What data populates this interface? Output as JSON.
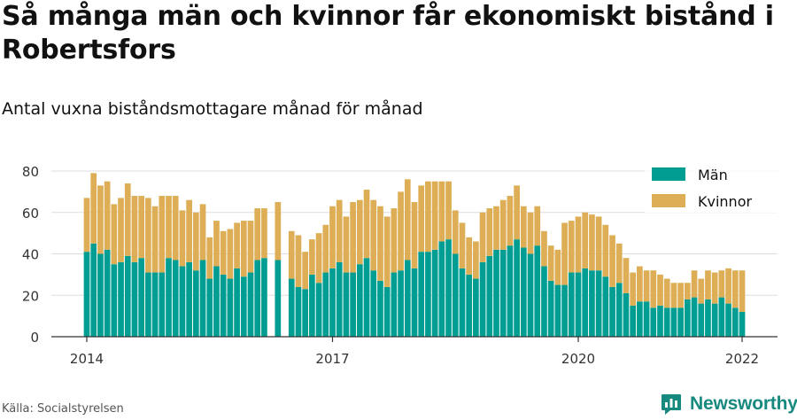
{
  "title": "Så många män och kvinnor får ekonomiskt bistånd i Robertsfors",
  "subtitle": "Antal vuxna biståndsmottagare månad för månad",
  "source": "Källa: Socialstyrelsen",
  "brand": {
    "name": "Newsworthy",
    "icon": "newsworthy-logo-icon"
  },
  "colors": {
    "men": "#009e92",
    "women": "#ddae55",
    "grid": "#dddddd",
    "axis": "#333333"
  },
  "chart_data": {
    "type": "bar",
    "stacked": true,
    "title": "Så många män och kvinnor får ekonomiskt bistånd i Robertsfors",
    "subtitle": "Antal vuxna biståndsmottagare månad för månad",
    "xlabel": "",
    "ylabel": "",
    "x_start": "2014-01",
    "x_end": "2022-01",
    "x_ticks": [
      "2014",
      "2017",
      "2020",
      "2022"
    ],
    "ylim": [
      0,
      80
    ],
    "y_ticks": [
      0,
      20,
      40,
      60,
      80
    ],
    "grid": true,
    "legend_position": "top-right",
    "categories": [
      "2014-01",
      "2014-02",
      "2014-03",
      "2014-04",
      "2014-05",
      "2014-06",
      "2014-07",
      "2014-08",
      "2014-09",
      "2014-10",
      "2014-11",
      "2014-12",
      "2015-01",
      "2015-02",
      "2015-03",
      "2015-04",
      "2015-05",
      "2015-06",
      "2015-07",
      "2015-08",
      "2015-09",
      "2015-10",
      "2015-11",
      "2015-12",
      "2016-01",
      "2016-02",
      "2016-03",
      "2016-04",
      "2016-05",
      "2016-06",
      "2016-07",
      "2016-08",
      "2016-09",
      "2016-10",
      "2016-11",
      "2016-12",
      "2017-01",
      "2017-02",
      "2017-03",
      "2017-04",
      "2017-05",
      "2017-06",
      "2017-07",
      "2017-08",
      "2017-09",
      "2017-10",
      "2017-11",
      "2017-12",
      "2018-01",
      "2018-02",
      "2018-03",
      "2018-04",
      "2018-05",
      "2018-06",
      "2018-07",
      "2018-08",
      "2018-09",
      "2018-10",
      "2018-11",
      "2018-12",
      "2019-01",
      "2019-02",
      "2019-03",
      "2019-04",
      "2019-05",
      "2019-06",
      "2019-07",
      "2019-08",
      "2019-09",
      "2019-10",
      "2019-11",
      "2019-12",
      "2020-01",
      "2020-02",
      "2020-03",
      "2020-04",
      "2020-05",
      "2020-06",
      "2020-07",
      "2020-08",
      "2020-09",
      "2020-10",
      "2020-11",
      "2020-12",
      "2021-01",
      "2021-02",
      "2021-03",
      "2021-04",
      "2021-05",
      "2021-06",
      "2021-07",
      "2021-08",
      "2021-09",
      "2021-10",
      "2021-11",
      "2021-12",
      "2022-01"
    ],
    "series": [
      {
        "name": "Män",
        "values": [
          41,
          45,
          40,
          42,
          35,
          36,
          39,
          36,
          38,
          31,
          31,
          31,
          38,
          37,
          34,
          36,
          32,
          37,
          28,
          34,
          30,
          28,
          33,
          29,
          31,
          37,
          38,
          null,
          37,
          null,
          28,
          24,
          23,
          30,
          26,
          31,
          33,
          36,
          31,
          31,
          35,
          38,
          32,
          27,
          24,
          31,
          32,
          37,
          33,
          41,
          41,
          42,
          46,
          47,
          40,
          33,
          30,
          28,
          36,
          39,
          42,
          42,
          44,
          47,
          43,
          40,
          44,
          34,
          27,
          25,
          25,
          31,
          31,
          33,
          32,
          32,
          29,
          24,
          26,
          21,
          15,
          17,
          17,
          14,
          15,
          14,
          14,
          14,
          18,
          19,
          16,
          18,
          16,
          19,
          16,
          14,
          12
        ]
      },
      {
        "name": "Kvinnor",
        "values": [
          26,
          34,
          33,
          33,
          29,
          31,
          35,
          32,
          30,
          36,
          32,
          37,
          30,
          31,
          27,
          30,
          28,
          27,
          20,
          22,
          21,
          24,
          22,
          27,
          25,
          25,
          24,
          null,
          28,
          null,
          23,
          25,
          18,
          17,
          24,
          23,
          30,
          30,
          27,
          34,
          31,
          33,
          34,
          36,
          34,
          31,
          38,
          39,
          32,
          32,
          34,
          33,
          29,
          28,
          21,
          22,
          18,
          18,
          24,
          23,
          21,
          24,
          24,
          26,
          20,
          20,
          19,
          17,
          17,
          17,
          30,
          25,
          27,
          27,
          27,
          26,
          25,
          25,
          19,
          17,
          16,
          17,
          15,
          18,
          15,
          14,
          12,
          12,
          8,
          13,
          12,
          14,
          15,
          13,
          17,
          18,
          20
        ]
      }
    ]
  }
}
